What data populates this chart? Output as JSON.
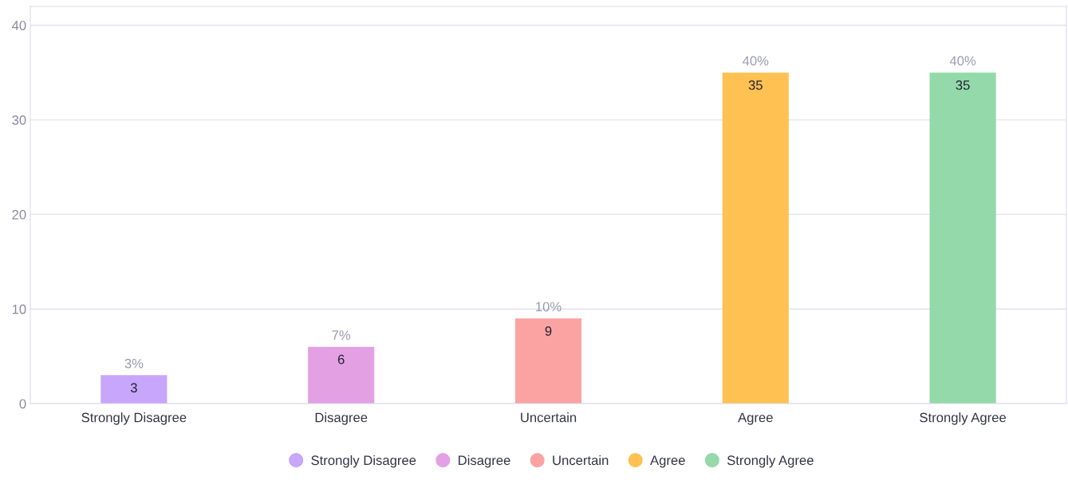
{
  "chart_data": {
    "type": "bar",
    "categories": [
      "Strongly Disagree",
      "Disagree",
      "Uncertain",
      "Agree",
      "Strongly Agree"
    ],
    "series": [
      {
        "name": "Strongly Disagree",
        "color": "#c7a6fb",
        "values": [
          3,
          null,
          null,
          null,
          null
        ]
      },
      {
        "name": "Disagree",
        "color": "#e3a0e3",
        "values": [
          null,
          6,
          null,
          null,
          null
        ]
      },
      {
        "name": "Uncertain",
        "color": "#fba3a3",
        "values": [
          null,
          null,
          9,
          null,
          null
        ]
      },
      {
        "name": "Agree",
        "color": "#ffc152",
        "values": [
          null,
          null,
          null,
          35,
          null
        ]
      },
      {
        "name": "Strongly Agree",
        "color": "#93d9a9",
        "values": [
          null,
          null,
          null,
          null,
          35
        ]
      }
    ],
    "ylim": [
      0,
      42
    ],
    "yticks": [
      0,
      10,
      20,
      30,
      40
    ],
    "grid": "y",
    "legend": "bottom",
    "data_labels": true,
    "annotations": [
      {
        "text": "3%",
        "x": "Strongly Disagree",
        "y": 3
      },
      {
        "text": "7%",
        "x": "Disagree",
        "y": 6
      },
      {
        "text": "10%",
        "x": "Uncertain",
        "y": 9
      },
      {
        "text": "40%",
        "x": "Agree",
        "y": 35
      },
      {
        "text": "40%",
        "x": "Strongly Agree",
        "y": 35
      }
    ]
  }
}
